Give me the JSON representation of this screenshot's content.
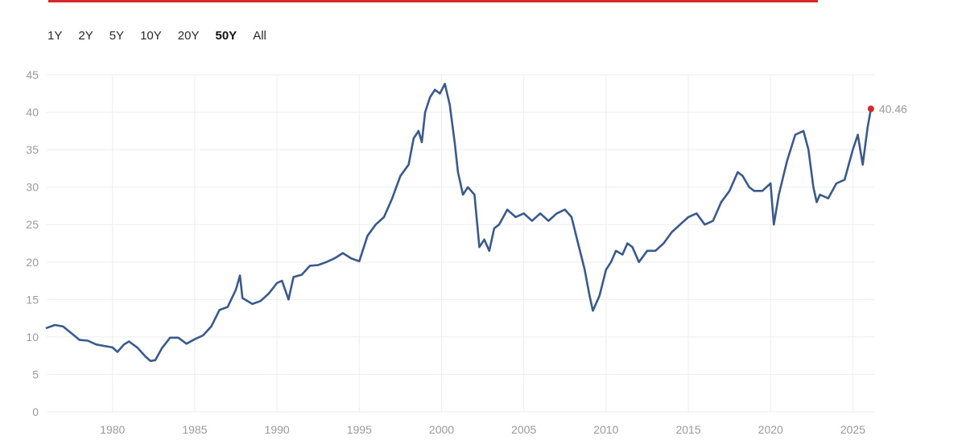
{
  "colors": {
    "accent": "#d4282b",
    "line": "#3a5a8c",
    "grid": "#eeeeee",
    "axis": "#9a9a9a",
    "marker": "#d4282b"
  },
  "tabs": [
    {
      "label": "1Y",
      "active": false
    },
    {
      "label": "2Y",
      "active": false
    },
    {
      "label": "5Y",
      "active": false
    },
    {
      "label": "10Y",
      "active": false
    },
    {
      "label": "20Y",
      "active": false
    },
    {
      "label": "50Y",
      "active": true
    },
    {
      "label": "All",
      "active": false
    }
  ],
  "chart_data": {
    "type": "line",
    "xlim": [
      1976,
      2026.3
    ],
    "ylim": [
      0,
      45
    ],
    "yticks": [
      0,
      5,
      10,
      15,
      20,
      25,
      30,
      35,
      40,
      45
    ],
    "xticks": [
      1980,
      1985,
      1990,
      1995,
      2000,
      2005,
      2010,
      2015,
      2020,
      2025
    ],
    "grid": "horizontal and vertical",
    "end_label": "40.46",
    "series": [
      {
        "x": [
          1976.0,
          1976.5,
          1977.0,
          1977.5,
          1978.0,
          1978.5,
          1979.0,
          1979.5,
          1980.0,
          1980.3,
          1980.7,
          1981.0,
          1981.5,
          1982.0,
          1982.3,
          1982.6,
          1983.0,
          1983.5,
          1984.0,
          1984.5,
          1985.0,
          1985.5,
          1986.0,
          1986.5,
          1987.0,
          1987.5,
          1987.75,
          1987.9,
          1988.5,
          1989.0,
          1989.5,
          1990.0,
          1990.3,
          1990.7,
          1991.0,
          1991.5,
          1992.0,
          1992.5,
          1993.0,
          1993.5,
          1994.0,
          1994.5,
          1995.0,
          1995.5,
          1996.0,
          1996.5,
          1997.0,
          1997.5,
          1998.0,
          1998.3,
          1998.6,
          1998.8,
          1999.0,
          1999.3,
          1999.6,
          1999.9,
          2000.2,
          2000.5,
          2000.8,
          2001.0,
          2001.3,
          2001.6,
          2002.0,
          2002.3,
          2002.6,
          2002.9,
          2003.2,
          2003.5,
          2004.0,
          2004.5,
          2005.0,
          2005.5,
          2006.0,
          2006.5,
          2007.0,
          2007.5,
          2007.9,
          2008.3,
          2008.7,
          2009.0,
          2009.2,
          2009.6,
          2010.0,
          2010.3,
          2010.6,
          2011.0,
          2011.3,
          2011.6,
          2012.0,
          2012.5,
          2013.0,
          2013.5,
          2014.0,
          2014.5,
          2015.0,
          2015.5,
          2016.0,
          2016.5,
          2017.0,
          2017.5,
          2018.0,
          2018.3,
          2018.7,
          2019.0,
          2019.5,
          2020.0,
          2020.2,
          2020.5,
          2021.0,
          2021.5,
          2022.0,
          2022.3,
          2022.6,
          2022.8,
          2023.0,
          2023.5,
          2024.0,
          2024.5,
          2025.0,
          2025.3,
          2025.6,
          2025.9,
          2026.1
        ],
        "y": [
          11.2,
          11.6,
          11.4,
          10.5,
          9.6,
          9.5,
          9.0,
          8.8,
          8.6,
          8.0,
          9.0,
          9.4,
          8.6,
          7.4,
          6.8,
          6.9,
          8.5,
          9.9,
          9.9,
          9.1,
          9.7,
          10.2,
          11.4,
          13.6,
          14.0,
          16.3,
          18.2,
          15.2,
          14.4,
          14.8,
          15.8,
          17.2,
          17.5,
          15.0,
          18.0,
          18.3,
          19.5,
          19.6,
          20.0,
          20.5,
          21.2,
          20.5,
          20.1,
          23.5,
          25.0,
          26.0,
          28.5,
          31.5,
          33.0,
          36.5,
          37.5,
          36.0,
          40.0,
          42.0,
          43.0,
          42.5,
          43.8,
          41.0,
          36.0,
          32.0,
          29.0,
          30.0,
          29.0,
          22.0,
          23.0,
          21.5,
          24.5,
          25.0,
          27.0,
          26.0,
          26.5,
          25.5,
          26.5,
          25.5,
          26.5,
          27.0,
          26.0,
          22.5,
          19.0,
          15.5,
          13.5,
          15.5,
          19.0,
          20.0,
          21.5,
          21.0,
          22.5,
          22.0,
          20.0,
          21.5,
          21.5,
          22.5,
          24.0,
          25.0,
          26.0,
          26.5,
          25.0,
          25.5,
          28.0,
          29.5,
          32.0,
          31.5,
          30.0,
          29.5,
          29.5,
          30.5,
          25.0,
          29.0,
          33.5,
          37.0,
          37.5,
          35.0,
          30.0,
          28.0,
          29.0,
          28.5,
          30.5,
          31.0,
          35.0,
          37.0,
          33.0,
          38.0,
          40.46
        ]
      }
    ]
  }
}
